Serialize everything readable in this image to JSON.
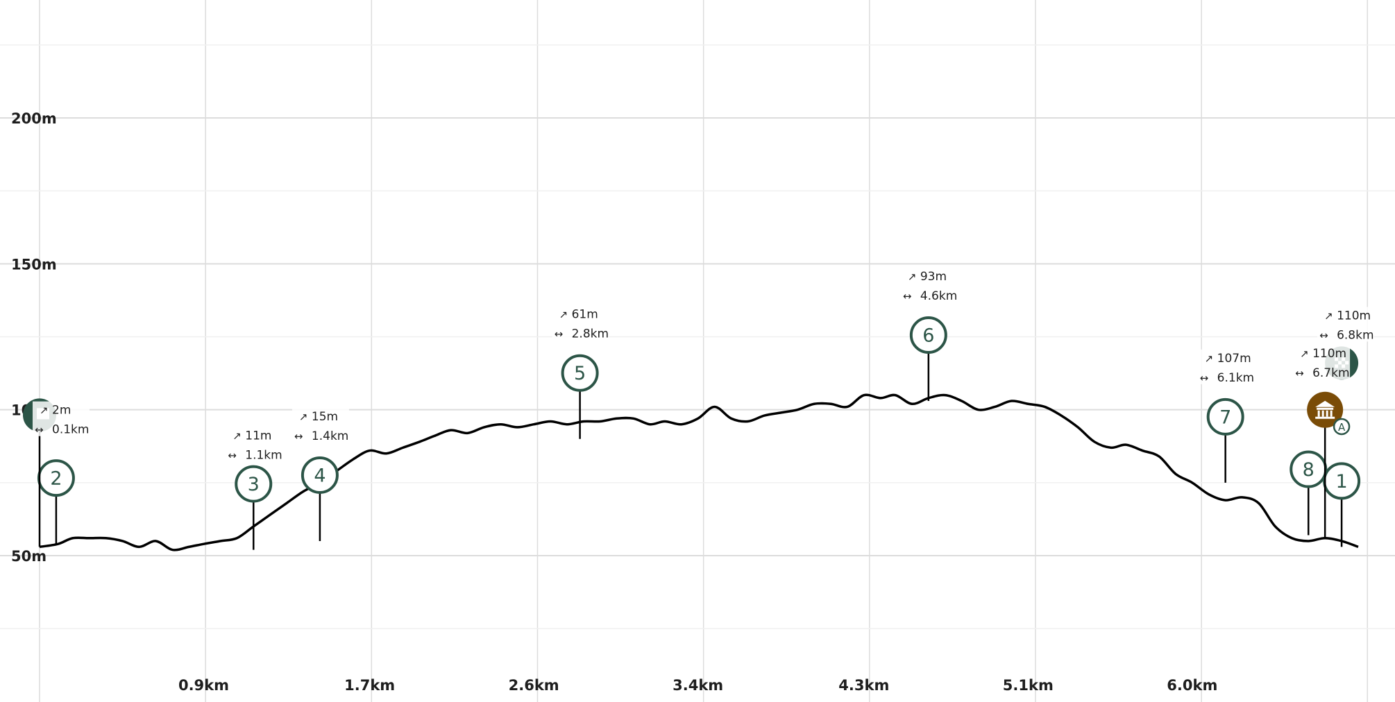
{
  "chart_data": {
    "type": "area",
    "title": "",
    "xlabel": "",
    "ylabel": "",
    "x_unit": "km",
    "y_unit": "m",
    "xlim": [
      0,
      7.15
    ],
    "ylim": [
      50,
      200
    ],
    "y_ticks": [
      "50m",
      "150m",
      "200m"
    ],
    "y_tick_values": [
      50,
      150,
      200
    ],
    "y_tick_partial": {
      "label": "10",
      "value": 100
    },
    "x_ticks": [
      "0.9km",
      "1.7km",
      "2.6km",
      "3.4km",
      "4.3km",
      "5.1km",
      "6.0km"
    ],
    "x_tick_values": [
      0.89,
      1.79,
      2.68,
      3.57,
      4.47,
      5.36,
      6.25
    ],
    "grid": true,
    "series": [
      {
        "x": [
          0.0,
          0.1,
          0.18,
          0.27,
          0.36,
          0.45,
          0.54,
          0.63,
          0.72,
          0.81,
          0.89,
          0.98,
          1.07,
          1.16,
          1.25,
          1.34,
          1.43,
          1.52,
          1.61,
          1.7,
          1.79,
          1.88,
          1.97,
          2.06,
          2.14,
          2.23,
          2.32,
          2.41,
          2.5,
          2.59,
          2.68,
          2.77,
          2.86,
          2.95,
          3.04,
          3.13,
          3.22,
          3.31,
          3.39,
          3.48,
          3.57,
          3.66,
          3.75,
          3.84,
          3.93,
          4.02,
          4.11,
          4.2,
          4.29,
          4.38,
          4.47,
          4.56,
          4.64,
          4.73,
          4.82,
          4.91,
          5.0,
          5.09,
          5.18,
          5.27,
          5.36,
          5.45,
          5.54,
          5.63,
          5.72,
          5.81,
          5.89,
          5.98,
          6.07,
          6.16,
          6.25,
          6.34,
          6.43,
          6.52,
          6.61,
          6.7,
          6.79,
          6.88,
          6.97,
          7.06,
          7.15
        ],
        "values": [
          53,
          54,
          56,
          56,
          56,
          55,
          53,
          55,
          52,
          53,
          54,
          55,
          56,
          60,
          64,
          68,
          72,
          75,
          79,
          83,
          86,
          85,
          87,
          89,
          91,
          93,
          92,
          94,
          95,
          94,
          95,
          96,
          95,
          96,
          96,
          97,
          97,
          95,
          96,
          95,
          97,
          101,
          97,
          96,
          98,
          99,
          100,
          102,
          102,
          101,
          105,
          104,
          105,
          102,
          104,
          105,
          103,
          100,
          101,
          103,
          102,
          101,
          98,
          94,
          89,
          87,
          88,
          86,
          84,
          78,
          75,
          71,
          69,
          70,
          68,
          60,
          56,
          55,
          56,
          55,
          53
        ]
      }
    ],
    "waypoints": [
      {
        "label": "2",
        "km": 0.09,
        "elev": 54
      },
      {
        "label": "3",
        "km": 1.16,
        "elev": 52
      },
      {
        "label": "4",
        "km": 1.52,
        "elev": 55
      },
      {
        "label": "5",
        "km": 2.93,
        "elev": 90
      },
      {
        "label": "6",
        "km": 4.82,
        "elev": 103
      },
      {
        "label": "7",
        "km": 6.43,
        "elev": 75
      },
      {
        "label": "8",
        "km": 6.88,
        "elev": 57
      },
      {
        "label": "1",
        "km": 7.06,
        "elev": 53
      }
    ],
    "stats": [
      {
        "gain": "2m",
        "dist": "0.1km"
      },
      {
        "gain": "11m",
        "dist": "1.1km"
      },
      {
        "gain": "15m",
        "dist": "1.4km"
      },
      {
        "gain": "61m",
        "dist": "2.8km"
      },
      {
        "gain": "93m",
        "dist": "4.6km"
      },
      {
        "gain": "107m",
        "dist": "6.1km"
      },
      {
        "gain": "110m",
        "dist": "6.7km"
      },
      {
        "gain": "110m",
        "dist": "6.8km"
      }
    ],
    "markers": [
      {
        "type": "start-flag",
        "km": 0.0,
        "elev": 53
      },
      {
        "type": "museum",
        "km": 6.97,
        "elev": 56
      },
      {
        "type": "point-a",
        "km": 7.06,
        "elev": 55
      },
      {
        "type": "finish-flag",
        "km": 7.06,
        "elev": 53
      }
    ],
    "colors": {
      "line": "#000000",
      "waypoint": "#2c5547",
      "museum": "#7a4c07",
      "grid": "#dcdcdc"
    },
    "arrow_up_icon": "arrow-up-right-icon",
    "distance_icon": "left-right-arrow-icon",
    "marker_a_label": "A"
  }
}
